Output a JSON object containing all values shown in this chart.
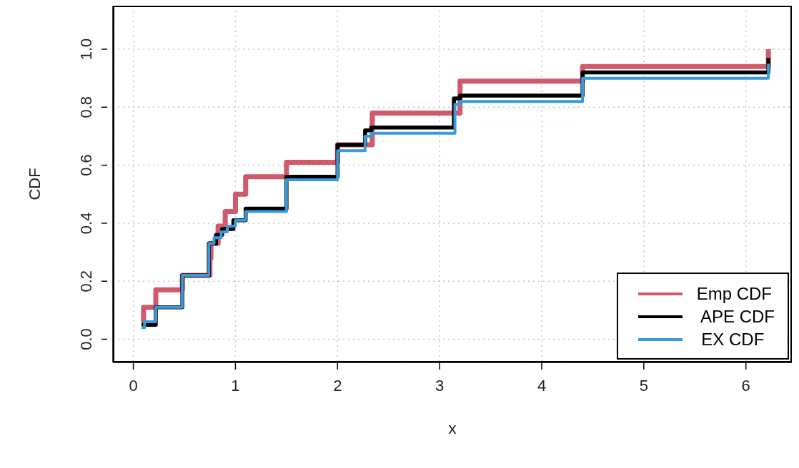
{
  "chart_data": {
    "type": "step",
    "xlabel": "x",
    "ylabel": "CDF",
    "xlim": [
      -0.2,
      6.45
    ],
    "ylim": [
      -0.08,
      1.15
    ],
    "xticks": [
      0,
      1,
      2,
      3,
      4,
      5,
      6
    ],
    "yticks": [
      {
        "value": 0,
        "label": "0.0"
      },
      {
        "value": 0.2,
        "label": "0.2"
      },
      {
        "value": 0.4,
        "label": "0.4"
      },
      {
        "value": 0.6,
        "label": "0.6"
      },
      {
        "value": 0.8,
        "label": "0.8"
      },
      {
        "value": 1,
        "label": "1.0"
      }
    ],
    "grid": true,
    "legend": "bottom right",
    "series": [
      {
        "name": "Emp CDF",
        "color": "#d0596b",
        "x": [
          0.08,
          0.1,
          0.22,
          0.48,
          0.75,
          0.76,
          0.83,
          0.9,
          1.0,
          1.1,
          1.5,
          2.0,
          2.34,
          3.2,
          4.4,
          6.22
        ],
        "values": [
          0.06,
          0.11,
          0.17,
          0.22,
          0.28,
          0.33,
          0.39,
          0.44,
          0.5,
          0.56,
          0.61,
          0.67,
          0.78,
          0.89,
          0.94,
          1.0
        ]
      },
      {
        "name": " APE CDF",
        "color": "#000000",
        "x": [
          0.08,
          0.22,
          0.48,
          0.74,
          0.81,
          0.87,
          0.98,
          1.1,
          1.5,
          2.0,
          2.27,
          2.33,
          3.14,
          3.2,
          4.4,
          6.22
        ],
        "values": [
          0.05,
          0.11,
          0.22,
          0.33,
          0.36,
          0.38,
          0.41,
          0.45,
          0.56,
          0.67,
          0.72,
          0.73,
          0.83,
          0.84,
          0.92,
          0.97
        ]
      },
      {
        "name": " EX CDF",
        "color": "#3a9ad9",
        "x": [
          0.08,
          0.11,
          0.22,
          0.48,
          0.74,
          0.79,
          0.86,
          0.92,
          1.0,
          1.1,
          1.5,
          2.0,
          2.27,
          2.33,
          3.15,
          3.2,
          4.4,
          6.22
        ],
        "values": [
          0.04,
          0.06,
          0.11,
          0.22,
          0.33,
          0.35,
          0.37,
          0.39,
          0.41,
          0.44,
          0.55,
          0.65,
          0.7,
          0.71,
          0.81,
          0.82,
          0.9,
          0.95
        ]
      }
    ]
  }
}
